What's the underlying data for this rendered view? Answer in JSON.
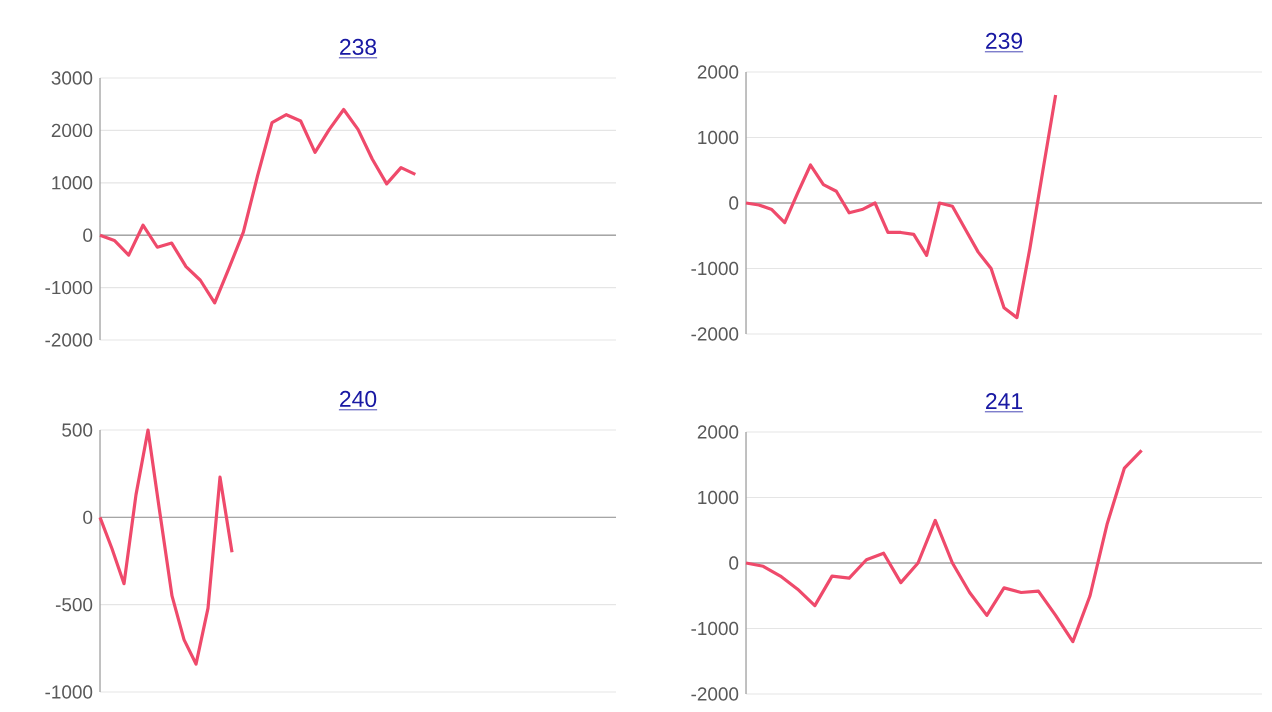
{
  "chart_data": [
    {
      "type": "line",
      "title": "238",
      "color": "#ef4a6b",
      "grid": "y",
      "tick_labels": "y",
      "marker": "none",
      "line_style": "solid",
      "ylim": [
        -2000,
        3000
      ],
      "yticks": [
        -2000,
        -1000,
        0,
        1000,
        2000,
        3000
      ],
      "categories": [
        null,
        null,
        null,
        null,
        null,
        null,
        null,
        null,
        null,
        null,
        null,
        null,
        null,
        null,
        null,
        null,
        null,
        null,
        null,
        null,
        null,
        null,
        null,
        null,
        null,
        null,
        null,
        null,
        null,
        null,
        null,
        null,
        null,
        null,
        null,
        null,
        null
      ],
      "values": [
        0,
        -100,
        -380,
        190,
        -230,
        -150,
        -600,
        -860,
        -1290,
        -630,
        60,
        1140,
        2150,
        2300,
        2180,
        1580,
        2020,
        2400,
        2020,
        1450,
        980,
        1290,
        1160,
        null,
        null,
        null,
        null,
        null,
        null,
        null,
        null,
        null,
        null,
        null,
        null,
        null,
        null
      ]
    },
    {
      "type": "line",
      "title": "239",
      "color": "#ef4a6b",
      "grid": "y",
      "tick_labels": "y",
      "marker": "none",
      "line_style": "solid",
      "ylim": [
        -2000,
        2000
      ],
      "yticks": [
        -2000,
        -1000,
        0,
        1000,
        2000
      ],
      "categories": [
        null,
        null,
        null,
        null,
        null,
        null,
        null,
        null,
        null,
        null,
        null,
        null,
        null,
        null,
        null,
        null,
        null,
        null,
        null,
        null,
        null,
        null,
        null,
        null,
        null,
        null,
        null,
        null,
        null,
        null,
        null,
        null,
        null,
        null,
        null,
        null,
        null,
        null,
        null,
        null,
        null
      ],
      "values": [
        0,
        -30,
        -100,
        -300,
        150,
        580,
        280,
        180,
        -150,
        -100,
        0,
        -450,
        -450,
        -480,
        -800,
        0,
        -50,
        -400,
        -750,
        -1000,
        -1600,
        -1750,
        -700,
        480,
        1650,
        null,
        null,
        null,
        null,
        null,
        null,
        null,
        null,
        null,
        null,
        null,
        null,
        null,
        null,
        null,
        null
      ]
    },
    {
      "type": "line",
      "title": "240",
      "color": "#ef4a6b",
      "grid": "y",
      "tick_labels": "y",
      "marker": "none",
      "line_style": "solid",
      "ylim": [
        -1000,
        500
      ],
      "yticks": [
        -1000,
        -500,
        0,
        500
      ],
      "categories": [
        null,
        null,
        null,
        null,
        null,
        null,
        null,
        null,
        null,
        null,
        null,
        null,
        null,
        null,
        null,
        null,
        null,
        null,
        null,
        null,
        null,
        null,
        null,
        null,
        null,
        null,
        null,
        null,
        null,
        null,
        null,
        null,
        null,
        null,
        null,
        null,
        null,
        null,
        null,
        null,
        null,
        null,
        null,
        null
      ],
      "values": [
        0,
        -180,
        -380,
        130,
        500,
        20,
        -450,
        -700,
        -840,
        -520,
        230,
        -200,
        null,
        null,
        null,
        null,
        null,
        null,
        null,
        null,
        null,
        null,
        null,
        null,
        null,
        null,
        null,
        null,
        null,
        null,
        null,
        null,
        null,
        null,
        null,
        null,
        null,
        null,
        null,
        null,
        null,
        null,
        null,
        null
      ]
    },
    {
      "type": "line",
      "title": "241",
      "color": "#ef4a6b",
      "grid": "y",
      "tick_labels": "y",
      "marker": "none",
      "line_style": "solid",
      "ylim": [
        -2000,
        2000
      ],
      "yticks": [
        -2000,
        -1000,
        0,
        1000,
        2000
      ],
      "categories": [
        null,
        null,
        null,
        null,
        null,
        null,
        null,
        null,
        null,
        null,
        null,
        null,
        null,
        null,
        null,
        null,
        null,
        null,
        null,
        null,
        null,
        null,
        null,
        null,
        null,
        null,
        null,
        null,
        null,
        null,
        null
      ],
      "values": [
        0,
        -50,
        -200,
        -400,
        -650,
        -200,
        -230,
        50,
        150,
        -300,
        0,
        650,
        0,
        -450,
        -800,
        -380,
        -450,
        -430,
        -800,
        -1200,
        -500,
        600,
        1450,
        1720,
        null,
        null,
        null,
        null,
        null,
        null,
        null
      ]
    }
  ]
}
